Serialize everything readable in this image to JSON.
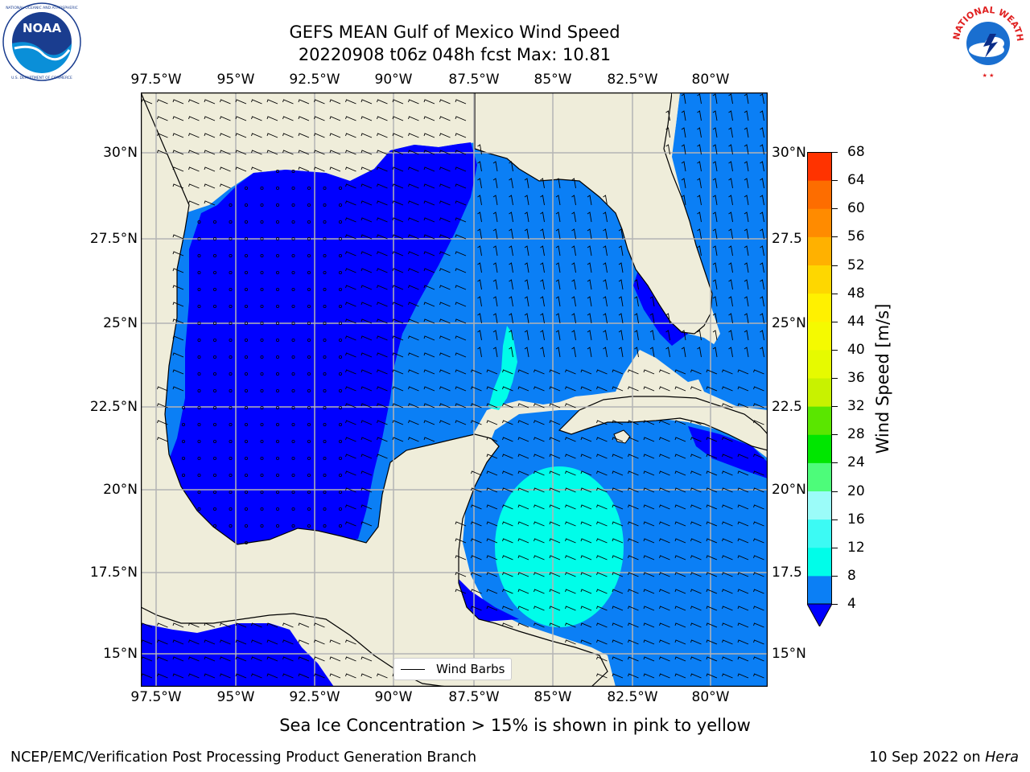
{
  "header": {
    "title_line1": "GEFS MEAN Gulf of Mexico Wind Speed",
    "title_line2": "20220908 t06z 048h fcst   Max: 10.81"
  },
  "logos": {
    "left": {
      "name": "NOARA logo",
      "text": "NOAA",
      "ring_text": "NATIONAL OCEANIC AND ATMOSPHERIC ADMINISTRATION · U.S. DEPARTMENT OF COMMERCE"
    },
    "right": {
      "name": "National Weather Service logo",
      "ring_text": "NATIONAL WEATHER SERVICE"
    }
  },
  "map": {
    "x_ticks": [
      "97.5°W",
      "95°W",
      "92.5°W",
      "90°W",
      "87.5°W",
      "85°W",
      "82.5°W",
      "80°W"
    ],
    "y_ticks_left": [
      "30°N",
      "27.5°N",
      "25°N",
      "22.5°N",
      "20°N",
      "17.5°N",
      "15°N"
    ],
    "y_ticks_right": [
      "30°N",
      "27.5",
      "25°N",
      "22.5",
      "20°N",
      "17.5",
      "15°N"
    ],
    "legend_label": "Wind Barbs",
    "colors": {
      "land": "#efedda",
      "ocean_low": "#0000ff",
      "ocean_mid": "#0b7ff5",
      "ocean_high": "#00ffee",
      "grid": "#b4b4b4"
    }
  },
  "colorbar": {
    "label": "Wind Speed [m/s]",
    "ticks": [
      "68",
      "64",
      "60",
      "56",
      "52",
      "48",
      "44",
      "40",
      "36",
      "32",
      "28",
      "24",
      "20",
      "16",
      "12",
      "8",
      "4"
    ],
    "colors_bottom_to_top": [
      "#0b7ff5",
      "#00fde9",
      "#3cfaf4",
      "#9bfcf9",
      "#4dfc7a",
      "#00e600",
      "#5ae600",
      "#c8f200",
      "#e6fa00",
      "#f5fa00",
      "#fff100",
      "#fed700",
      "#ffb100",
      "#ff8b00",
      "#fd6d00",
      "#ff3300",
      "#ff0000"
    ],
    "under_color": "#0000ff"
  },
  "caption": "Sea Ice Concentration > 15% is shown in pink to yellow",
  "footer": {
    "left": "NCEP/EMC/Verification Post Processing Product Generation Branch",
    "right_prefix": "10 Sep 2022 on ",
    "right_machine": "Hera"
  }
}
